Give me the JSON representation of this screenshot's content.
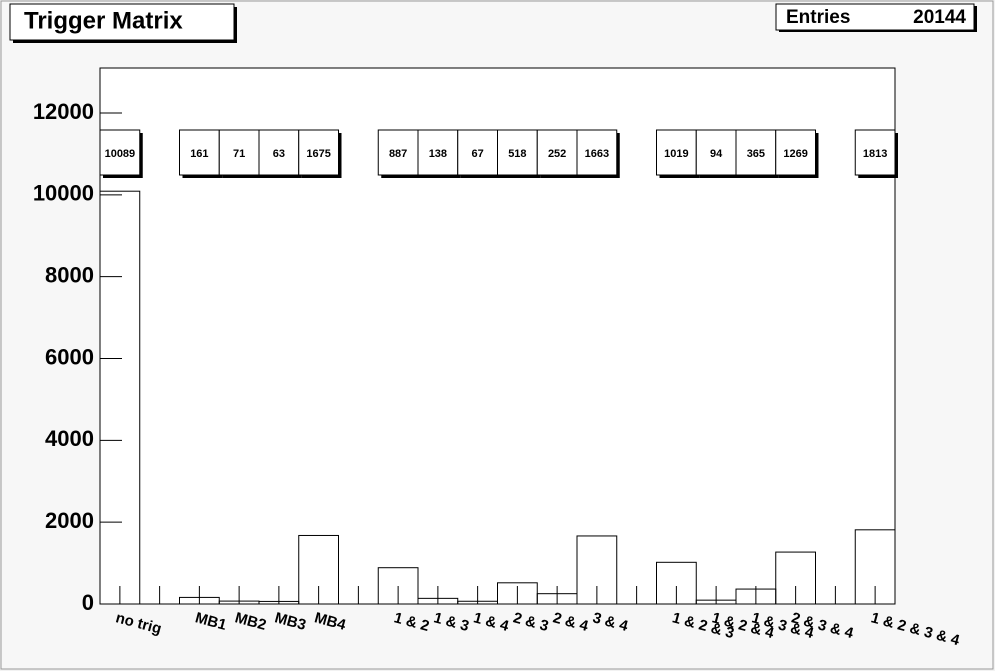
{
  "chart_data": {
    "type": "histogram",
    "title": "Trigger Matrix",
    "stats_label": "Entries",
    "entries": 20144,
    "categories": [
      "no trig",
      null,
      "MB1",
      "MB2",
      "MB3",
      "MB4",
      null,
      "1 & 2",
      "1 & 3",
      "1 & 4",
      "2 & 3",
      "2 & 4",
      "3 & 4",
      null,
      "1 & 2 & 3",
      "1 & 2 & 4",
      "1 & 3 & 4",
      "2 & 3 & 4",
      null,
      "1 & 2 & 3 & 4"
    ],
    "values": [
      10089,
      null,
      161,
      71,
      63,
      1675,
      null,
      887,
      138,
      67,
      518,
      252,
      1663,
      null,
      1019,
      94,
      365,
      1269,
      null,
      1813
    ],
    "color": "#000000",
    "ylim": [
      0,
      13100
    ],
    "yticks": [
      0,
      2000,
      4000,
      6000,
      8000,
      10000,
      12000
    ]
  }
}
